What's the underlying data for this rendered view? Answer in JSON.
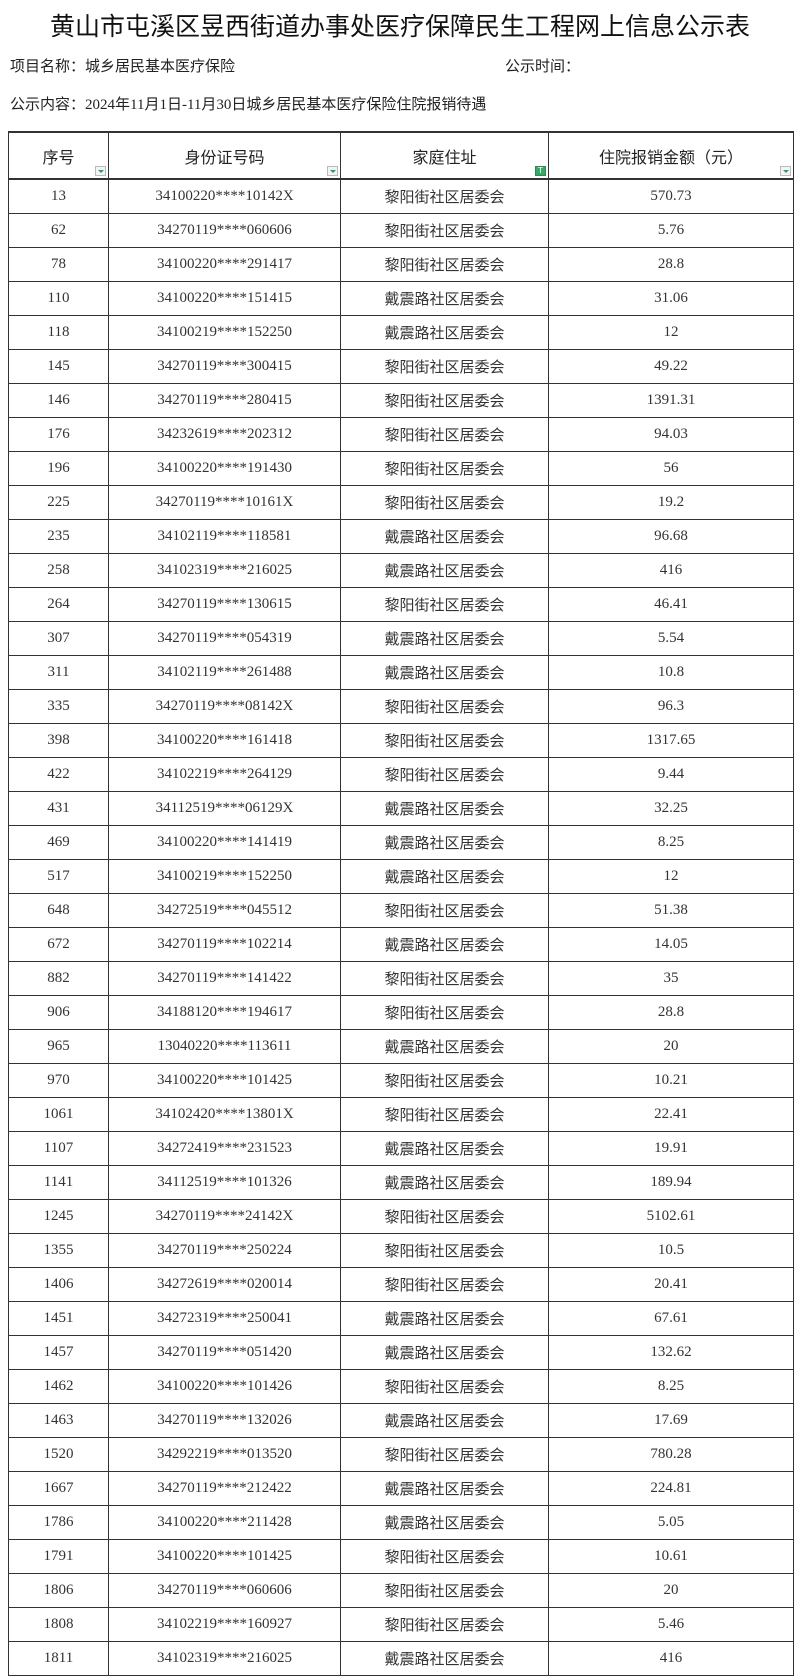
{
  "title": "黄山市屯溪区昱西街道办事处医疗保障民生工程网上信息公示表",
  "project_label": "项目名称：城乡居民基本医疗保险",
  "time_label": "公示时间：",
  "content_label": "公示内容：2024年11月1日-11月30日城乡居民基本医疗保险住院报销待遇",
  "columns": [
    {
      "label": "序号",
      "filter_icon": "dropdown-filter-icon"
    },
    {
      "label": "身份证号码",
      "filter_icon": "dropdown-filter-icon"
    },
    {
      "label": "家庭住址",
      "filter_icon": "active-filter-icon"
    },
    {
      "label": "住院报销金额（元）",
      "filter_icon": "dropdown-filter-icon"
    }
  ],
  "accent_color": "#3aa66a",
  "rows": [
    [
      "13",
      "34100220****10142X",
      "黎阳街社区居委会",
      "570.73"
    ],
    [
      "62",
      "34270119****060606",
      "黎阳街社区居委会",
      "5.76"
    ],
    [
      "78",
      "34100220****291417",
      "黎阳街社区居委会",
      "28.8"
    ],
    [
      "110",
      "34100220****151415",
      "戴震路社区居委会",
      "31.06"
    ],
    [
      "118",
      "34100219****152250",
      "戴震路社区居委会",
      "12"
    ],
    [
      "145",
      "34270119****300415",
      "黎阳街社区居委会",
      "49.22"
    ],
    [
      "146",
      "34270119****280415",
      "黎阳街社区居委会",
      "1391.31"
    ],
    [
      "176",
      "34232619****202312",
      "黎阳街社区居委会",
      "94.03"
    ],
    [
      "196",
      "34100220****191430",
      "黎阳街社区居委会",
      "56"
    ],
    [
      "225",
      "34270119****10161X",
      "黎阳街社区居委会",
      "19.2"
    ],
    [
      "235",
      "34102119****118581",
      "戴震路社区居委会",
      "96.68"
    ],
    [
      "258",
      "34102319****216025",
      "戴震路社区居委会",
      "416"
    ],
    [
      "264",
      "34270119****130615",
      "黎阳街社区居委会",
      "46.41"
    ],
    [
      "307",
      "34270119****054319",
      "戴震路社区居委会",
      "5.54"
    ],
    [
      "311",
      "34102119****261488",
      "戴震路社区居委会",
      "10.8"
    ],
    [
      "335",
      "34270119****08142X",
      "黎阳街社区居委会",
      "96.3"
    ],
    [
      "398",
      "34100220****161418",
      "黎阳街社区居委会",
      "1317.65"
    ],
    [
      "422",
      "34102219****264129",
      "黎阳街社区居委会",
      "9.44"
    ],
    [
      "431",
      "34112519****06129X",
      "戴震路社区居委会",
      "32.25"
    ],
    [
      "469",
      "34100220****141419",
      "戴震路社区居委会",
      "8.25"
    ],
    [
      "517",
      "34100219****152250",
      "戴震路社区居委会",
      "12"
    ],
    [
      "648",
      "34272519****045512",
      "黎阳街社区居委会",
      "51.38"
    ],
    [
      "672",
      "34270119****102214",
      "戴震路社区居委会",
      "14.05"
    ],
    [
      "882",
      "34270119****141422",
      "黎阳街社区居委会",
      "35"
    ],
    [
      "906",
      "34188120****194617",
      "黎阳街社区居委会",
      "28.8"
    ],
    [
      "965",
      "13040220****113611",
      "戴震路社区居委会",
      "20"
    ],
    [
      "970",
      "34100220****101425",
      "黎阳街社区居委会",
      "10.21"
    ],
    [
      "1061",
      "34102420****13801X",
      "黎阳街社区居委会",
      "22.41"
    ],
    [
      "1107",
      "34272419****231523",
      "戴震路社区居委会",
      "19.91"
    ],
    [
      "1141",
      "34112519****101326",
      "戴震路社区居委会",
      "189.94"
    ],
    [
      "1245",
      "34270119****24142X",
      "黎阳街社区居委会",
      "5102.61"
    ],
    [
      "1355",
      "34270119****250224",
      "黎阳街社区居委会",
      "10.5"
    ],
    [
      "1406",
      "34272619****020014",
      "黎阳街社区居委会",
      "20.41"
    ],
    [
      "1451",
      "34272319****250041",
      "戴震路社区居委会",
      "67.61"
    ],
    [
      "1457",
      "34270119****051420",
      "戴震路社区居委会",
      "132.62"
    ],
    [
      "1462",
      "34100220****101426",
      "黎阳街社区居委会",
      "8.25"
    ],
    [
      "1463",
      "34270119****132026",
      "戴震路社区居委会",
      "17.69"
    ],
    [
      "1520",
      "34292219****013520",
      "黎阳街社区居委会",
      "780.28"
    ],
    [
      "1667",
      "34270119****212422",
      "戴震路社区居委会",
      "224.81"
    ],
    [
      "1786",
      "34100220****211428",
      "戴震路社区居委会",
      "5.05"
    ],
    [
      "1791",
      "34100220****101425",
      "黎阳街社区居委会",
      "10.61"
    ],
    [
      "1806",
      "34270119****060606",
      "黎阳街社区居委会",
      "20"
    ],
    [
      "1808",
      "34102219****160927",
      "黎阳街社区居委会",
      "5.46"
    ],
    [
      "1811",
      "34102319****216025",
      "戴震路社区居委会",
      "416"
    ]
  ]
}
